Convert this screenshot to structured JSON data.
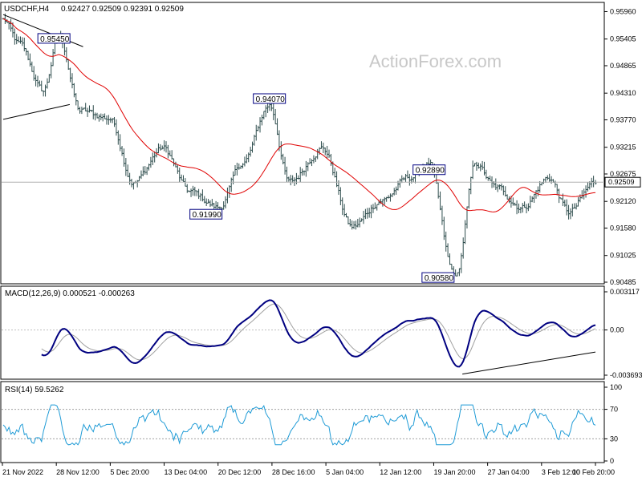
{
  "header": {
    "symbol": "USDCHF,H4",
    "ohlc": "0.92427 0.92509 0.92391 0.92509",
    "watermark": "ActionForex.com"
  },
  "colors": {
    "bars": "#2e4d4d",
    "ma": "#e00000",
    "macd": "#000080",
    "signal": "#a0a0a0",
    "rsi": "#1f9bd6",
    "frame": "#000000",
    "price_tag_bg": "#ffffff",
    "price_label_border": "#000080"
  },
  "chart_data": [
    {
      "type": "ohlc",
      "name": "price",
      "current_price": "0.92509",
      "ylim": [
        0.90485,
        0.96
      ],
      "y_ticks": [
        "0.95960",
        "0.95405",
        "0.94865",
        "0.94310",
        "0.93770",
        "0.93215",
        "0.92675",
        "0.92120",
        "0.91580",
        "0.91025",
        "0.90485"
      ],
      "x_ticks": [
        "21 Nov 2022",
        "28 Nov 12:00",
        "5 Dec 20:00",
        "13 Dec 04:00",
        "20 Dec 12:00",
        "28 Dec 16:00",
        "5 Jan 04:00",
        "12 Jan 12:00",
        "19 Jan 20:00",
        "27 Jan 04:00",
        "3 Feb 12:00",
        "10 Feb 20:00"
      ],
      "bar_count": 310,
      "anchors": [
        [
          0,
          0.958
        ],
        [
          12,
          0.953
        ],
        [
          30,
          0.9435
        ],
        [
          42,
          0.9545
        ],
        [
          58,
          0.9395
        ],
        [
          80,
          0.938
        ],
        [
          98,
          0.925
        ],
        [
          120,
          0.932
        ],
        [
          140,
          0.9232
        ],
        [
          162,
          0.9199
        ],
        [
          180,
          0.929
        ],
        [
          200,
          0.9407
        ],
        [
          215,
          0.925
        ],
        [
          240,
          0.932
        ],
        [
          262,
          0.916
        ],
        [
          285,
          0.9215
        ],
        [
          305,
          0.926
        ],
        [
          320,
          0.9289
        ],
        [
          338,
          0.907
        ],
        [
          340,
          0.9058
        ],
        [
          355,
          0.9289
        ],
        [
          370,
          0.924
        ],
        [
          390,
          0.92
        ],
        [
          410,
          0.926
        ],
        [
          425,
          0.919
        ],
        [
          445,
          0.9251
        ]
      ],
      "series": [
        {
          "name": "ma",
          "kind": "moving-average"
        }
      ],
      "labels": [
        {
          "text": "0.95450",
          "x": 20,
          "y": 0.9545
        },
        {
          "text": "0.91990",
          "x": 162,
          "y": 0.9199
        },
        {
          "text": "0.94070",
          "x": 200,
          "y": 0.9407
        },
        {
          "text": "0.92890",
          "x": 320,
          "y": 0.9289
        },
        {
          "text": "0.90580",
          "x": 340,
          "y": 0.9058
        }
      ],
      "trendlines": [
        {
          "from": [
            0,
            0.959
          ],
          "to": [
            60,
            0.9525
          ]
        },
        {
          "from": [
            0,
            0.9378
          ],
          "to": [
            50,
            0.9408
          ]
        }
      ]
    },
    {
      "type": "line",
      "name": "MACD",
      "title": "MACD(12,26,9) 0.000521 -0.000263",
      "ylim": [
        -0.003693,
        0.003117
      ],
      "y_ticks": [
        "0.003117",
        "0.00",
        "-0.003693"
      ],
      "series": [
        {
          "name": "macd",
          "kind": "macd"
        },
        {
          "name": "signal",
          "kind": "signal"
        }
      ],
      "trendline": {
        "from": [
          345,
          -0.0036
        ],
        "to": [
          445,
          -0.0018
        ]
      }
    },
    {
      "type": "line",
      "name": "RSI",
      "title": "RSI(14) 59.5262",
      "ylim": [
        0,
        100
      ],
      "y_ticks": [
        "100",
        "70",
        "30",
        "0"
      ],
      "levels": [
        70,
        30
      ]
    }
  ]
}
